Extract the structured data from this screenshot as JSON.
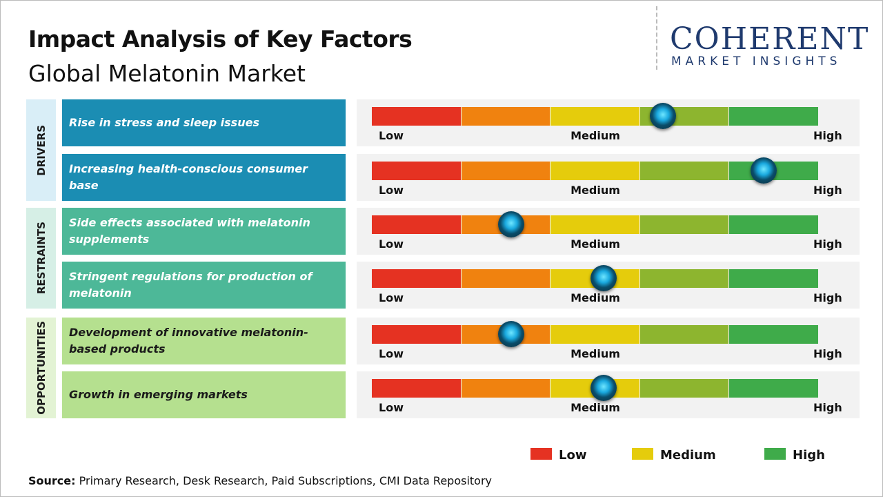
{
  "header": {
    "title": "Impact Analysis of Key Factors",
    "subtitle": "Global Melatonin Market"
  },
  "logo": {
    "name": "COHERENT",
    "tagline": "MARKET INSIGHTS"
  },
  "scale": {
    "labels": [
      "Low",
      "Medium",
      "High"
    ],
    "colors": [
      "#e53222",
      "#f0820f",
      "#e5cc0c",
      "#8db52f",
      "#3fab4a"
    ]
  },
  "groups": [
    {
      "name": "DRIVERS",
      "color": "#1b8db3",
      "label_bg": "#d9eef7",
      "text_color": "#ffffff",
      "factors": [
        {
          "label": "Rise in stress and sleep issues",
          "impact": 3.26
        },
        {
          "label": "Increasing health-conscious consumer base",
          "impact": 4.38
        }
      ]
    },
    {
      "name": "RESTRAINTS",
      "color": "#4db898",
      "label_bg": "#d6efe6",
      "text_color": "#ffffff",
      "factors": [
        {
          "label": "Side effects associated with melatonin supplements",
          "impact": 1.56
        },
        {
          "label": "Stringent regulations for production of melatonin",
          "impact": 2.59
        }
      ]
    },
    {
      "name": "OPPORTUNITIES",
      "color": "#b5e08f",
      "label_bg": "#e3f3d4",
      "text_color": "#1a1a1a",
      "factors": [
        {
          "label": "Development of innovative melatonin-based products",
          "impact": 1.56
        },
        {
          "label": "Growth in emerging markets",
          "impact": 2.59
        }
      ]
    }
  ],
  "legend": [
    {
      "label": "Low",
      "color": "#e53222"
    },
    {
      "label": "Medium",
      "color": "#e5cc0c"
    },
    {
      "label": "High",
      "color": "#3fab4a"
    }
  ],
  "source": {
    "label": "Source:",
    "text": "Primary Research, Desk Research, Paid Subscriptions, CMI Data Repository"
  }
}
